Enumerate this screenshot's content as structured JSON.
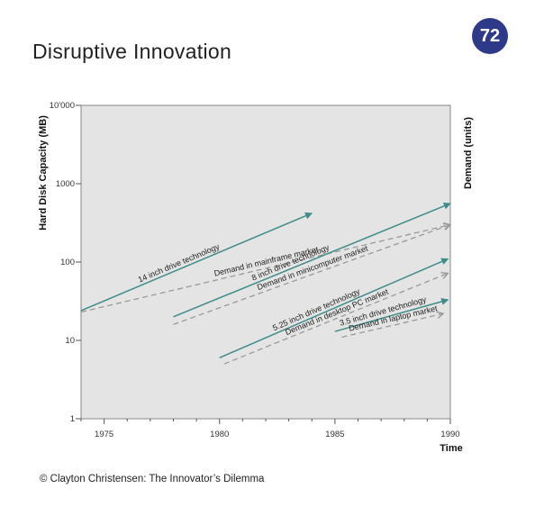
{
  "page": {
    "title": "Disruptive Innovation",
    "page_number": "72",
    "badge_color": "#2e3a87",
    "copyright": "© Clayton Christensen: The Innovator’s Dilemma"
  },
  "chart_data": {
    "type": "line",
    "title": "",
    "xlabel": "Time",
    "ylabel_left": "Hard Disk Capacity (MB)",
    "ylabel_right": "Demand (units)",
    "y_scale": "log",
    "xlim": [
      1974,
      1990
    ],
    "ylim": [
      1,
      10000
    ],
    "x_ticks": [
      1975,
      1980,
      1985,
      1990
    ],
    "x_tick_labels": [
      "1975",
      "1980",
      "1985",
      "1990"
    ],
    "y_ticks": [
      1,
      10,
      100,
      1000,
      10000
    ],
    "y_tick_labels": [
      "1",
      "10",
      "100",
      "1000",
      "10'000"
    ],
    "grid": false,
    "plot_background": "#e4e4e4",
    "technology_color": "#3f8a8a",
    "demand_color": "#999999",
    "series": [
      {
        "name": "14 inch drive technology",
        "style": "solid-arrow",
        "x": [
          1974,
          1984
        ],
        "y": [
          24,
          420
        ]
      },
      {
        "name": "Demand in mainframe market",
        "style": "dashed-arrow",
        "x": [
          1974,
          1990
        ],
        "y": [
          23,
          300
        ]
      },
      {
        "name": "8 inch drive technology",
        "style": "solid-arrow",
        "x": [
          1978,
          1990
        ],
        "y": [
          20,
          560
        ]
      },
      {
        "name": "Demand in minicomputer market",
        "style": "dashed-arrow",
        "x": [
          1978,
          1990
        ],
        "y": [
          16,
          300
        ]
      },
      {
        "name": "5.25 inch drive technology",
        "style": "solid-arrow",
        "x": [
          1980,
          1989.9
        ],
        "y": [
          6,
          110
        ]
      },
      {
        "name": "Demand in desktop PC market",
        "style": "dashed-arrow",
        "x": [
          1980.2,
          1989.9
        ],
        "y": [
          5,
          72
        ]
      },
      {
        "name": "3.5 inch drive technology",
        "style": "solid-arrow",
        "x": [
          1985,
          1989.9
        ],
        "y": [
          13,
          33
        ]
      },
      {
        "name": "Demand in laptop market",
        "style": "dashed-arrow",
        "x": [
          1985.3,
          1989.7
        ],
        "y": [
          11,
          22
        ]
      }
    ]
  }
}
